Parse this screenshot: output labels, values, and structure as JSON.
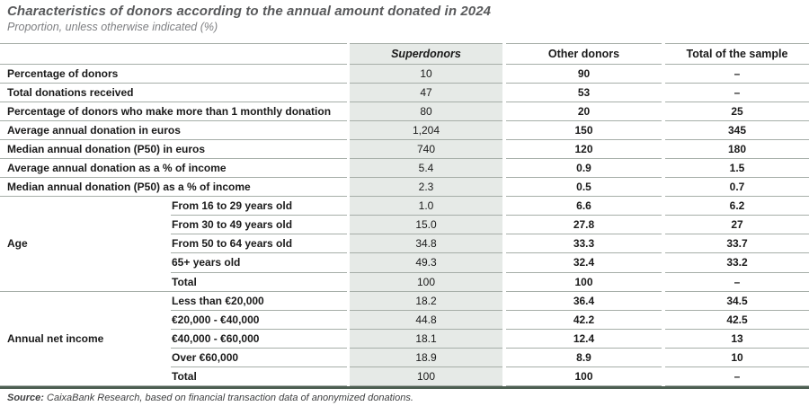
{
  "chart_data": {
    "type": "table",
    "title": "Characteristics of donors according to the annual amount donated in 2024",
    "subtitle": "Proportion, unless otherwise indicated (%)",
    "column_headers": [
      "Superdonors",
      "Other donors",
      "Total of the sample"
    ],
    "simple_rows": [
      {
        "label": "Percentage of donors",
        "superdonors": "10",
        "other_donors": "90",
        "total": "–"
      },
      {
        "label": "Total donations received",
        "superdonors": "47",
        "other_donors": "53",
        "total": "–"
      },
      {
        "label": "Percentage of donors who make more than 1 monthly donation",
        "superdonors": "80",
        "other_donors": "20",
        "total": "25"
      },
      {
        "label": "Average annual donation in euros",
        "superdonors": "1,204",
        "other_donors": "150",
        "total": "345"
      },
      {
        "label": "Median annual donation (P50) in euros",
        "superdonors": "740",
        "other_donors": "120",
        "total": "180"
      },
      {
        "label": "Average annual donation as a % of income",
        "superdonors": "5.4",
        "other_donors": "0.9",
        "total": "1.5"
      },
      {
        "label": "Median annual donation (P50) as a % of income",
        "superdonors": "2.3",
        "other_donors": "0.5",
        "total": "0.7"
      }
    ],
    "groups": [
      {
        "label": "Age",
        "rows": [
          {
            "label": "From 16 to 29 years old",
            "superdonors": "1.0",
            "other_donors": "6.6",
            "total": "6.2"
          },
          {
            "label": "From 30 to 49 years old",
            "superdonors": "15.0",
            "other_donors": "27.8",
            "total": "27"
          },
          {
            "label": "From 50 to 64 years old",
            "superdonors": "34.8",
            "other_donors": "33.3",
            "total": "33.7"
          },
          {
            "label": "65+ years old",
            "superdonors": "49.3",
            "other_donors": "32.4",
            "total": "33.2"
          },
          {
            "label": "Total",
            "superdonors": "100",
            "other_donors": "100",
            "total": "–"
          }
        ]
      },
      {
        "label": "Annual net income",
        "rows": [
          {
            "label": "Less than €20,000",
            "superdonors": "18.2",
            "other_donors": "36.4",
            "total": "34.5"
          },
          {
            "label": "€20,000 - €40,000",
            "superdonors": "44.8",
            "other_donors": "42.2",
            "total": "42.5"
          },
          {
            "label": "€40,000 - €60,000",
            "superdonors": "18.1",
            "other_donors": "12.4",
            "total": "13"
          },
          {
            "label": "Over €60,000",
            "superdonors": "18.9",
            "other_donors": "8.9",
            "total": "10"
          },
          {
            "label": "Total",
            "superdonors": "100",
            "other_donors": "100",
            "total": "–"
          }
        ]
      }
    ],
    "source_prefix": "Source:",
    "source_text": " CaixaBank Research, based on financial transaction data of anonymized donations.",
    "colors": {
      "highlight_column_bg": "#e6eae7",
      "grid_line": "#a6aea8",
      "bottom_bar": "#4d5f52",
      "title_text": "#58595b"
    },
    "layout_hints": {
      "highlighted_column": "Superdonors",
      "grid": "horizontal lines only, gaps between columns"
    }
  }
}
